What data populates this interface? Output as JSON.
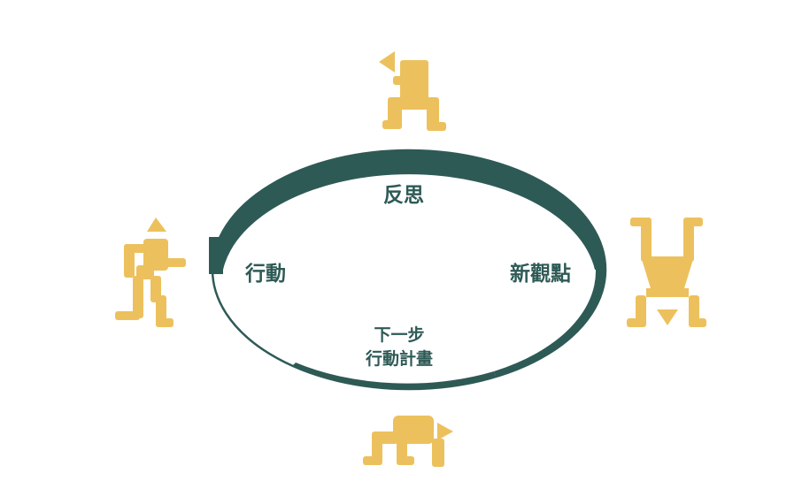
{
  "colors": {
    "cycle_stroke": "#2e5a56",
    "figure_fill": "#ecc15d",
    "label_text": "#2e5a56",
    "background": "#ffffff"
  },
  "cycle": {
    "stages": {
      "reflect": "反思",
      "new_perspective": "新觀點",
      "next_plan_line1": "下一步",
      "next_plan_line2": "行動計畫",
      "action": "行動"
    }
  },
  "figures": [
    {
      "name": "thinking-figure-icon",
      "position": "top"
    },
    {
      "name": "handstand-figure-icon",
      "position": "right"
    },
    {
      "name": "crawling-figure-icon",
      "position": "bottom"
    },
    {
      "name": "walking-figure-icon",
      "position": "left"
    }
  ]
}
